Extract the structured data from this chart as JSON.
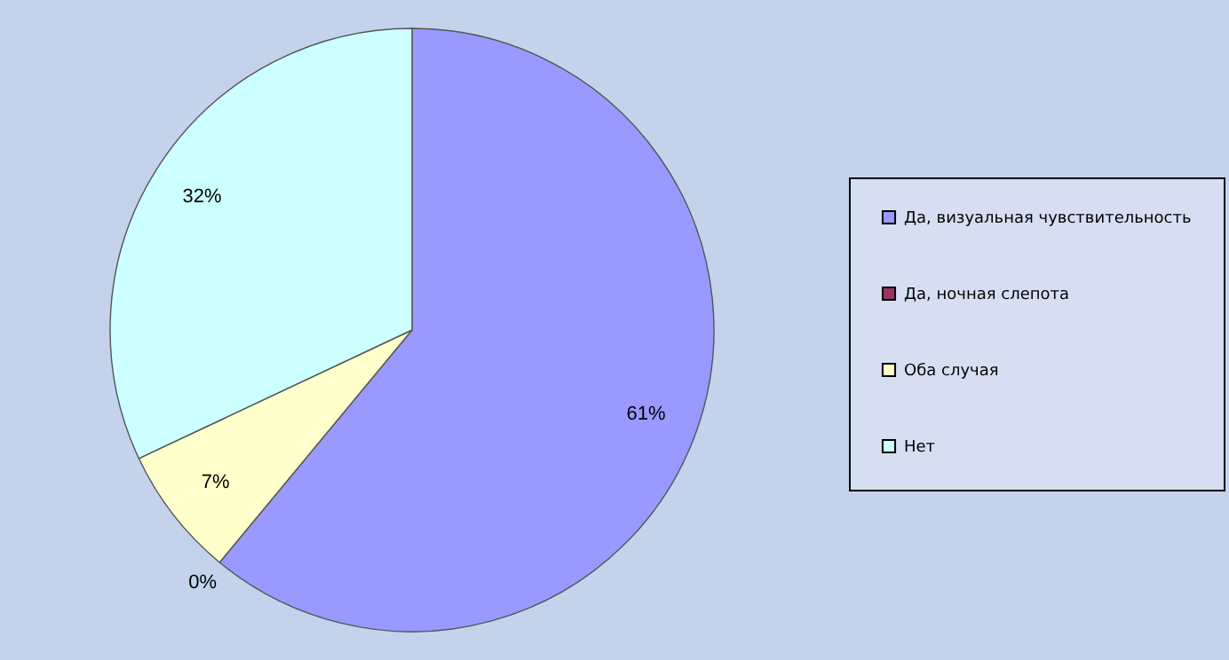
{
  "chart_data": {
    "type": "pie",
    "categories": [
      "Да, визуальная чувствительность",
      "Да, ночная слепота",
      "Оба случая",
      "Нет"
    ],
    "values": [
      61,
      0,
      7,
      32
    ],
    "colors": [
      "#9999ff",
      "#993366",
      "#ffffcc",
      "#ccffff"
    ],
    "value_labels": [
      "61%",
      "0%",
      "7%",
      "32%"
    ],
    "legend": "right"
  }
}
